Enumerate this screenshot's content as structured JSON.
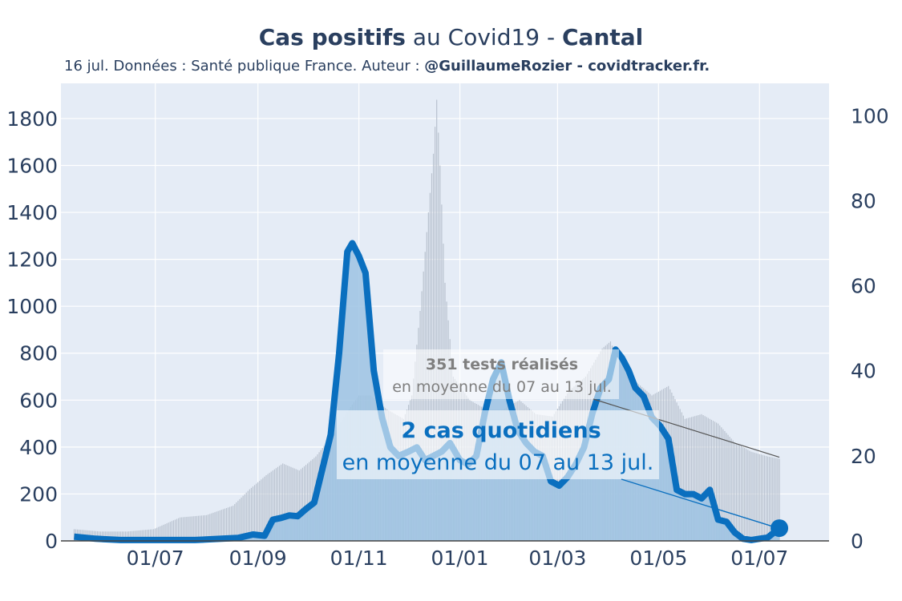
{
  "title": {
    "part1": "Cas positifs",
    "part2": " au Covid19 - ",
    "part3": "Cantal"
  },
  "subtitle": {
    "text": "16 jul. Données : Santé publique France. Auteur : ",
    "author": "@GuillaumeRozier - covidtracker.fr."
  },
  "colors": {
    "plot_bg": "#e5ecf6",
    "cases_line": "#0a6fbf",
    "cases_fill": "#9dc3e3",
    "tests_bars": "#b9c2cf",
    "text": "#2a3f5f",
    "annotation_grey": "#7f7f7f"
  },
  "annotations": {
    "tests_line1": "351 tests réalisés",
    "tests_line2": "en moyenne du 07 au 13 jul.",
    "cases_line1": "2 cas quotidiens",
    "cases_line2": "en moyenne du 07 au 13 jul."
  },
  "chart_data": {
    "type": "line",
    "x_ticks": [
      "01/07",
      "01/09",
      "01/11",
      "01/01",
      "01/03",
      "01/05",
      "01/07"
    ],
    "y_left": {
      "ticks": [
        0,
        200,
        400,
        600,
        800,
        1000,
        1200,
        1400,
        1600,
        1800
      ],
      "range": [
        0,
        1950
      ]
    },
    "y_right": {
      "ticks": [
        0,
        20,
        40,
        60,
        80,
        100
      ],
      "range": [
        0,
        107.6
      ]
    },
    "grid": true,
    "series": [
      {
        "axis": "left",
        "style": "bars",
        "x": [
          "2020-05-13",
          "2020-05-29",
          "2020-06-14",
          "2020-06-30",
          "2020-07-16",
          "2020-08-01",
          "2020-08-17",
          "2020-08-27",
          "2020-09-06",
          "2020-09-16",
          "2020-09-26",
          "2020-10-06",
          "2020-10-16",
          "2020-10-26",
          "2020-11-01",
          "2020-11-08",
          "2020-11-18",
          "2020-11-28",
          "2020-12-03",
          "2020-12-08",
          "2020-12-13",
          "2020-12-16",
          "2020-12-18",
          "2020-12-20",
          "2020-12-23",
          "2020-12-28",
          "2021-01-07",
          "2021-01-17",
          "2021-01-27",
          "2021-02-06",
          "2021-02-16",
          "2021-02-26",
          "2021-03-08",
          "2021-03-18",
          "2021-03-28",
          "2021-04-02",
          "2021-04-07",
          "2021-04-17",
          "2021-04-27",
          "2021-05-07",
          "2021-05-17",
          "2021-05-27",
          "2021-06-06",
          "2021-06-16",
          "2021-06-26",
          "2021-07-06",
          "2021-07-13"
        ],
        "values": [
          50,
          40,
          40,
          50,
          100,
          110,
          150,
          220,
          280,
          330,
          300,
          360,
          450,
          560,
          620,
          620,
          560,
          520,
          620,
          980,
          1400,
          1650,
          1880,
          1600,
          1100,
          700,
          600,
          560,
          560,
          600,
          540,
          530,
          640,
          700,
          820,
          850,
          760,
          680,
          620,
          660,
          520,
          540,
          500,
          420,
          380,
          360,
          350
        ]
      },
      {
        "axis": "right",
        "style": "line",
        "x": [
          "2020-05-13",
          "2020-05-26",
          "2020-06-10",
          "2020-06-25",
          "2020-07-10",
          "2020-07-25",
          "2020-08-10",
          "2020-08-20",
          "2020-08-29",
          "2020-09-05",
          "2020-09-10",
          "2020-09-15",
          "2020-09-20",
          "2020-09-25",
          "2020-09-30",
          "2020-10-05",
          "2020-10-10",
          "2020-10-15",
          "2020-10-20",
          "2020-10-25",
          "2020-10-28",
          "2020-11-01",
          "2020-11-05",
          "2020-11-10",
          "2020-11-15",
          "2020-11-20",
          "2020-11-25",
          "2020-12-01",
          "2020-12-06",
          "2020-12-11",
          "2020-12-16",
          "2020-12-21",
          "2020-12-26",
          "2021-01-01",
          "2021-01-06",
          "2021-01-11",
          "2021-01-16",
          "2021-01-21",
          "2021-01-26",
          "2021-01-31",
          "2021-02-05",
          "2021-02-10",
          "2021-02-15",
          "2021-02-20",
          "2021-02-25",
          "2021-03-02",
          "2021-03-07",
          "2021-03-12",
          "2021-03-17",
          "2021-03-22",
          "2021-03-27",
          "2021-04-01",
          "2021-04-05",
          "2021-04-09",
          "2021-04-13",
          "2021-04-17",
          "2021-04-22",
          "2021-04-27",
          "2021-05-02",
          "2021-05-07",
          "2021-05-12",
          "2021-05-17",
          "2021-05-22",
          "2021-05-27",
          "2021-06-01",
          "2021-06-06",
          "2021-06-11",
          "2021-06-16",
          "2021-06-21",
          "2021-06-26",
          "2021-07-01",
          "2021-07-06",
          "2021-07-13"
        ],
        "values": [
          1,
          0.5,
          0.2,
          0.2,
          0.2,
          0.2,
          0.5,
          0.7,
          1.5,
          1.2,
          5,
          5.4,
          6,
          5.8,
          7.5,
          9,
          17,
          25,
          44,
          68,
          70,
          67,
          63,
          40,
          29,
          22,
          20,
          21,
          22,
          19,
          20,
          21,
          23,
          19,
          18,
          20,
          30,
          38,
          42,
          33,
          26,
          23,
          21,
          20,
          14,
          13,
          15,
          18,
          22,
          30,
          36,
          38,
          45,
          43,
          40,
          36,
          34,
          29,
          27,
          24,
          12,
          11,
          11,
          10,
          12,
          5,
          4.5,
          2,
          0.5,
          0.2,
          0.5,
          0.8,
          3
        ]
      }
    ]
  }
}
